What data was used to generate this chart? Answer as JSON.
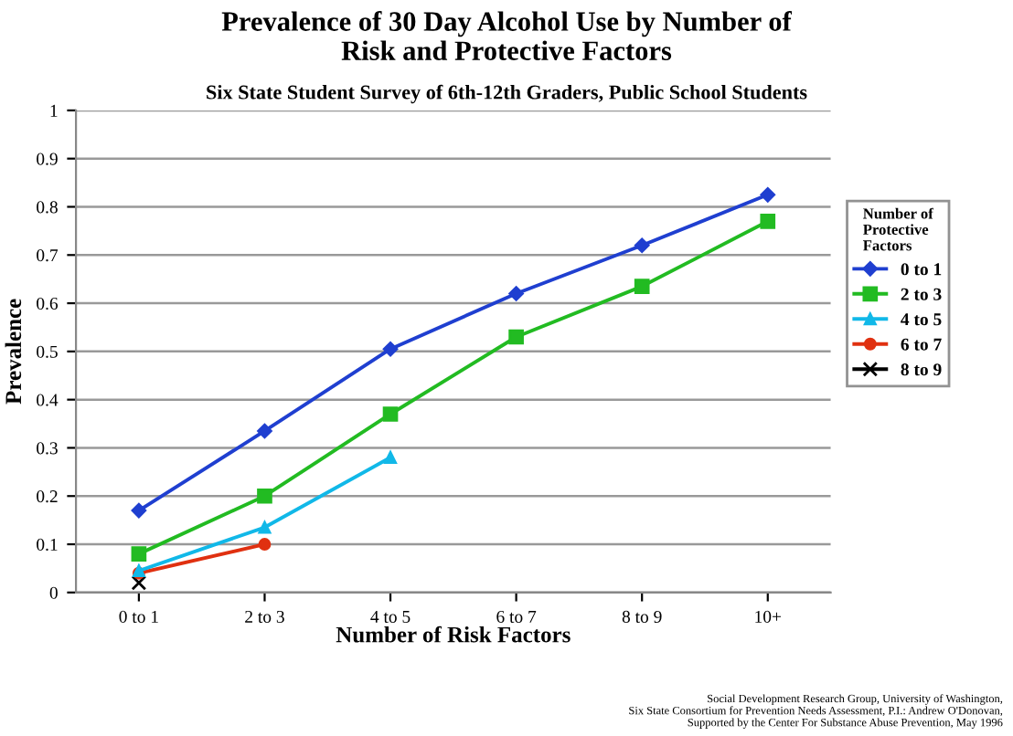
{
  "chart_data": {
    "type": "line",
    "title": "Prevalence of 30 Day Alcohol Use by Number of\nRisk and Protective Factors",
    "subtitle": "Six State Student Survey of 6th-12th Graders, Public School Students",
    "xlabel": "Number of Risk Factors",
    "ylabel": "Prevalence",
    "legend_title": "Number of\nProtective\nFactors",
    "categories": [
      "0 to 1",
      "2 to 3",
      "4 to 5",
      "6 to 7",
      "8 to 9",
      "10+"
    ],
    "series": [
      {
        "name": "0 to 1",
        "color": "#1f3fd0",
        "marker": "diamond",
        "values": [
          0.17,
          0.335,
          0.505,
          0.62,
          0.72,
          0.825
        ]
      },
      {
        "name": "2 to 3",
        "color": "#22bb22",
        "marker": "square",
        "values": [
          0.08,
          0.2,
          0.37,
          0.53,
          0.635,
          0.77
        ]
      },
      {
        "name": "4 to 5",
        "color": "#11b8e8",
        "marker": "triangle",
        "values": [
          0.045,
          0.135,
          0.28,
          null,
          null,
          null
        ]
      },
      {
        "name": "6 to 7",
        "color": "#e03010",
        "marker": "circle",
        "values": [
          0.04,
          0.1,
          null,
          null,
          null,
          null
        ]
      },
      {
        "name": "8 to 9",
        "color": "#000000",
        "marker": "cross",
        "values": [
          0.02,
          null,
          null,
          null,
          null,
          null
        ]
      }
    ],
    "ylim": [
      0,
      1
    ],
    "yticks": [
      0,
      0.1,
      0.2,
      0.3,
      0.4,
      0.5,
      0.6,
      0.7,
      0.8,
      0.9,
      1
    ],
    "grid": "y",
    "legend": "right",
    "line_style": "solid",
    "annotations": [
      "Social Development Research Group, University of Washington,\nSix State Consortium for Prevention Needs Assessment, P.I.: Andrew O'Donovan,\nSupported by the Center For Substance Abuse Prevention, May 1996"
    ]
  }
}
